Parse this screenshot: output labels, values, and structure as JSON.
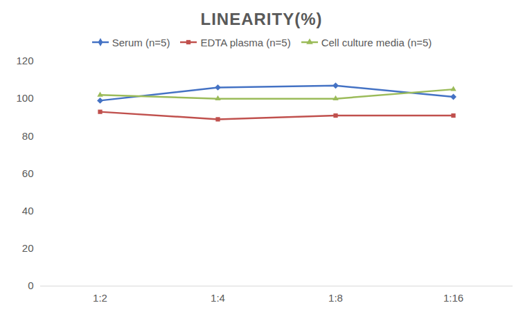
{
  "chart_data": {
    "type": "line",
    "title": "LINEARITY(%)",
    "categories": [
      "1:2",
      "1:4",
      "1:8",
      "1:16"
    ],
    "series": [
      {
        "name": "Serum (n=5)",
        "color": "#4472c4",
        "marker": "diamond",
        "values": [
          99,
          106,
          107,
          101
        ]
      },
      {
        "name": "EDTA plasma (n=5)",
        "color": "#c0504d",
        "marker": "square",
        "values": [
          93,
          89,
          91,
          91
        ]
      },
      {
        "name": "Cell culture media (n=5)",
        "color": "#9bbb59",
        "marker": "triangle",
        "values": [
          102,
          100,
          100,
          105
        ]
      }
    ],
    "ylim": [
      0,
      120
    ],
    "yticks": [
      0,
      20,
      40,
      60,
      80,
      100,
      120
    ],
    "grid": false,
    "legend": "top"
  }
}
